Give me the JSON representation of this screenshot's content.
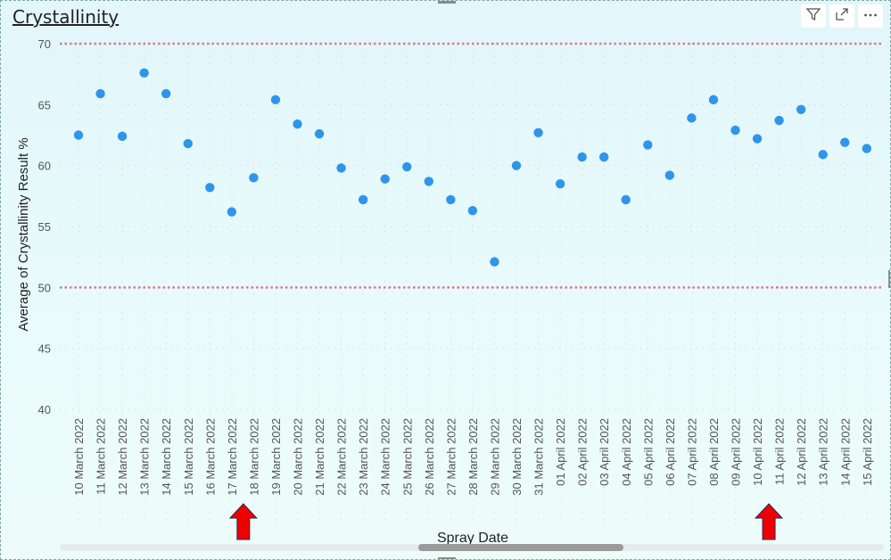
{
  "title": "Crystallinity",
  "toolbar": {
    "filter_icon": "filter-icon",
    "focus_icon": "focus-mode-icon",
    "more_icon": "more-options-icon"
  },
  "chart_data": {
    "type": "scatter",
    "xlabel": "Spray Date",
    "ylabel": "Average of Crystallinity Result %",
    "ylim": [
      40,
      70
    ],
    "yticks": [
      40,
      45,
      50,
      55,
      60,
      65,
      70
    ],
    "grid": true,
    "point_color": "#2f95ea",
    "reference_lines": [
      {
        "value": 70,
        "color": "#d77c84",
        "style": "dotted"
      },
      {
        "value": 50,
        "color": "#d77c84",
        "style": "dotted"
      }
    ],
    "markers": [
      {
        "category": "17 March 2022",
        "type": "arrow-up",
        "color": "#ee0000"
      },
      {
        "category": "10 April 2022",
        "type": "arrow-up",
        "color": "#ee0000"
      }
    ],
    "categories": [
      "10 March 2022",
      "11 March 2022",
      "12 March 2022",
      "13 March 2022",
      "14 March 2022",
      "15 March 2022",
      "16 March 2022",
      "17 March 2022",
      "18 March 2022",
      "19 March 2022",
      "20 March 2022",
      "21 March 2022",
      "22 March 2022",
      "23 March 2022",
      "24 March 2022",
      "25 March 2022",
      "26 March 2022",
      "27 March 2022",
      "28 March 2022",
      "29 March 2022",
      "30 March 2022",
      "31 March 2022",
      "01 April 2022",
      "02 April 2022",
      "03 April 2022",
      "04 April 2022",
      "05 April 2022",
      "06 April 2022",
      "07 April 2022",
      "08 April 2022",
      "09 April 2022",
      "10 April 2022",
      "11 April 2022",
      "12 April 2022",
      "13 April 2022",
      "14 April 2022",
      "15 April 2022"
    ],
    "values": [
      62.5,
      65.9,
      62.4,
      67.6,
      65.9,
      61.8,
      58.2,
      56.2,
      59.0,
      65.4,
      63.4,
      62.6,
      59.8,
      57.2,
      58.9,
      59.9,
      58.7,
      57.2,
      56.3,
      52.1,
      60.0,
      62.7,
      58.5,
      60.7,
      60.7,
      57.2,
      61.7,
      59.2,
      63.9,
      65.4,
      62.9,
      62.2,
      63.7,
      64.6,
      60.9,
      61.9,
      61.4
    ]
  }
}
